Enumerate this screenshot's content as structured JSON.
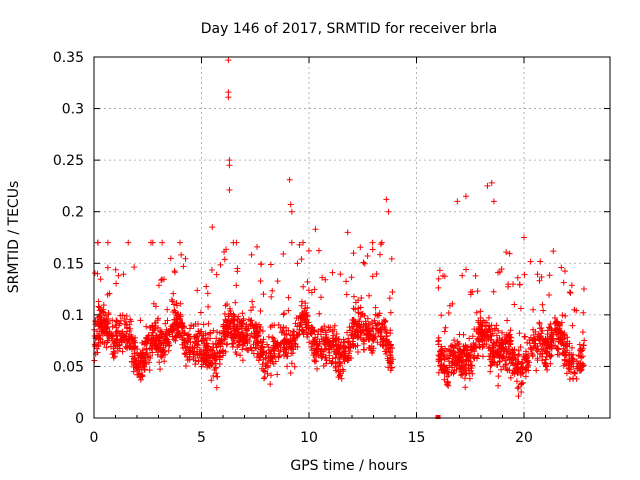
{
  "chart_data": {
    "type": "scatter",
    "title": "Day 146 of 2017, SRMTID for receiver brla",
    "xlabel": "GPS time / hours",
    "ylabel": "SRMTID / TECUs",
    "xlim": [
      0,
      24
    ],
    "ylim": [
      0,
      0.35
    ],
    "xticks": [
      0,
      5,
      10,
      15,
      20
    ],
    "xtick_labels": [
      "0",
      "5",
      "10",
      "15",
      "20"
    ],
    "yticks": [
      0,
      0.05,
      0.1,
      0.15,
      0.2,
      0.25,
      0.3,
      0.35
    ],
    "ytick_labels": [
      "0",
      "0.05",
      "0.1",
      "0.15",
      "0.2",
      "0.25",
      "0.3",
      "0.35"
    ],
    "grid": true,
    "marker": "+",
    "marker_color": "#ff0000",
    "segments": [
      {
        "x_start": 0.0,
        "x_end": 13.9,
        "y_median": 0.075,
        "y_spread": 0.035
      },
      {
        "x_start": 16.0,
        "x_end": 22.8,
        "y_median": 0.065,
        "y_spread": 0.035
      }
    ],
    "peaks": [
      {
        "x": 6.25,
        "y": 0.347
      },
      {
        "x": 6.25,
        "y": 0.316
      },
      {
        "x": 6.25,
        "y": 0.311
      },
      {
        "x": 6.3,
        "y": 0.25
      },
      {
        "x": 6.3,
        "y": 0.245
      },
      {
        "x": 6.3,
        "y": 0.221
      },
      {
        "x": 9.1,
        "y": 0.231
      },
      {
        "x": 9.15,
        "y": 0.207
      },
      {
        "x": 9.2,
        "y": 0.2
      },
      {
        "x": 9.2,
        "y": 0.17
      },
      {
        "x": 13.6,
        "y": 0.212
      },
      {
        "x": 13.7,
        "y": 0.2
      },
      {
        "x": 16.9,
        "y": 0.21
      },
      {
        "x": 17.3,
        "y": 0.215
      },
      {
        "x": 18.3,
        "y": 0.225
      },
      {
        "x": 18.5,
        "y": 0.228
      },
      {
        "x": 18.6,
        "y": 0.21
      },
      {
        "x": 20.0,
        "y": 0.175
      },
      {
        "x": 4.0,
        "y": 0.17
      },
      {
        "x": 5.5,
        "y": 0.185
      },
      {
        "x": 10.3,
        "y": 0.183
      },
      {
        "x": 11.8,
        "y": 0.18
      }
    ],
    "isolated_points": [
      {
        "x": 16.0,
        "y": 0.0
      }
    ]
  }
}
